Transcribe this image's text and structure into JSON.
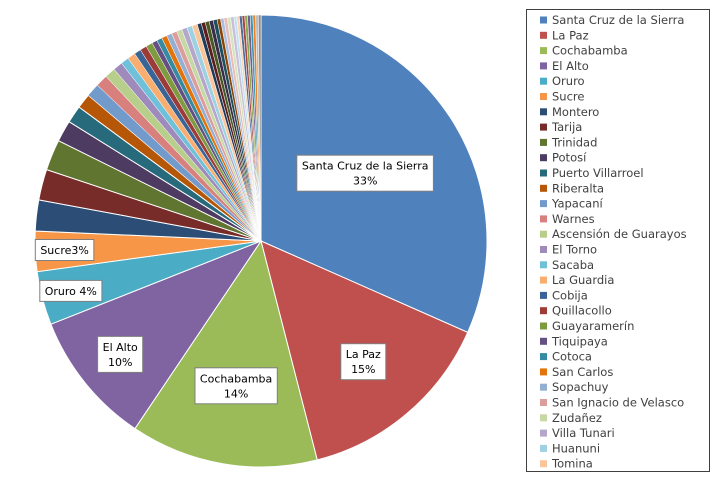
{
  "chart_data": {
    "type": "pie",
    "title": "",
    "legend_position": "right",
    "start_angle_deg": 0,
    "direction": "clockwise",
    "slices": [
      {
        "label": "Santa Cruz de la Sierra",
        "value": 33,
        "color": "#4f81bd",
        "data_label": "Santa Cruz de la Sierra\n33%"
      },
      {
        "label": "La Paz",
        "value": 15,
        "color": "#c0504d",
        "data_label": "La Paz\n15%"
      },
      {
        "label": "Cochabamba",
        "value": 14,
        "color": "#9bbb59",
        "data_label": "Cochabamba\n14%"
      },
      {
        "label": "El Alto",
        "value": 10,
        "color": "#8064a2",
        "data_label": "El Alto\n10%"
      },
      {
        "label": "Oruro",
        "value": 4,
        "color": "#4bacc6",
        "data_label": "Oruro 4%"
      },
      {
        "label": "Sucre",
        "value": 3,
        "color": "#f79646",
        "data_label": "Sucre3%"
      },
      {
        "label": "Montero",
        "value": 2.3,
        "color": "#2c4d75",
        "data_label": ""
      },
      {
        "label": "Tarija",
        "value": 2.3,
        "color": "#772c2a",
        "data_label": ""
      },
      {
        "label": "Trinidad",
        "value": 2.3,
        "color": "#5f7530",
        "data_label": ""
      },
      {
        "label": "Potosí",
        "value": 1.6,
        "color": "#4d3b62",
        "data_label": ""
      },
      {
        "label": "Puerto Villarroel",
        "value": 1.3,
        "color": "#276a7c",
        "data_label": ""
      },
      {
        "label": "Riberalta",
        "value": 1.1,
        "color": "#b65708",
        "data_label": ""
      },
      {
        "label": "Yapacaní",
        "value": 1.0,
        "color": "#729aca",
        "data_label": ""
      },
      {
        "label": "Warnes",
        "value": 0.9,
        "color": "#d7807e",
        "data_label": ""
      },
      {
        "label": "Ascensión de Guarayos",
        "value": 0.8,
        "color": "#b7cf8a",
        "data_label": ""
      },
      {
        "label": "El Torno",
        "value": 0.7,
        "color": "#9f8bbb",
        "data_label": ""
      },
      {
        "label": "Sacaba",
        "value": 0.6,
        "color": "#6fc1d9",
        "data_label": ""
      },
      {
        "label": "La Guardia",
        "value": 0.6,
        "color": "#f9ad6e",
        "data_label": ""
      },
      {
        "label": "Cobija",
        "value": 0.5,
        "color": "#3a6496",
        "data_label": ""
      },
      {
        "label": "Quillacollo",
        "value": 0.5,
        "color": "#9c3b38",
        "data_label": ""
      },
      {
        "label": "Guayaramerín",
        "value": 0.5,
        "color": "#7e9b40",
        "data_label": ""
      },
      {
        "label": "Tiquipaya",
        "value": 0.4,
        "color": "#664f83",
        "data_label": ""
      },
      {
        "label": "Cotoca",
        "value": 0.4,
        "color": "#358ba2",
        "data_label": ""
      },
      {
        "label": "San Carlos",
        "value": 0.4,
        "color": "#e3730b",
        "data_label": ""
      },
      {
        "label": "Sopachuy",
        "value": 0.4,
        "color": "#95afd4",
        "data_label": ""
      },
      {
        "label": "San Ignacio de Velasco",
        "value": 0.4,
        "color": "#dc9e9d",
        "data_label": ""
      },
      {
        "label": "Zudañez",
        "value": 0.4,
        "color": "#c6d9a4",
        "data_label": ""
      },
      {
        "label": "Villa Tunari",
        "value": 0.4,
        "color": "#b5a7cc",
        "data_label": ""
      },
      {
        "label": "Huanuni",
        "value": 0.4,
        "color": "#9ed2e3",
        "data_label": ""
      },
      {
        "label": "Tomina",
        "value": 0.4,
        "color": "#fbc59b",
        "data_label": ""
      }
    ],
    "extra_small_slices": {
      "values": [
        0.3,
        0.3,
        0.3,
        0.3,
        0.3,
        0.25,
        0.25,
        0.25,
        0.25,
        0.25,
        0.2,
        0.2,
        0.2,
        0.2,
        0.2,
        0.2,
        0.2,
        0.2,
        0.2,
        0.2
      ],
      "colors": [
        "#1f3b5a",
        "#5a1f1e",
        "#465a24",
        "#3a2c4a",
        "#1d4f5d",
        "#8c4306",
        "#a9c0e0",
        "#e8bcbb",
        "#d6e4bd",
        "#c9bfdc",
        "#bfe2ee",
        "#fcd5b8",
        "#4a6e9c",
        "#a44744",
        "#8aaa4c",
        "#735c94",
        "#3e98b1",
        "#ee8228",
        "#bdbdbd",
        "#8f8f8f"
      ]
    }
  }
}
